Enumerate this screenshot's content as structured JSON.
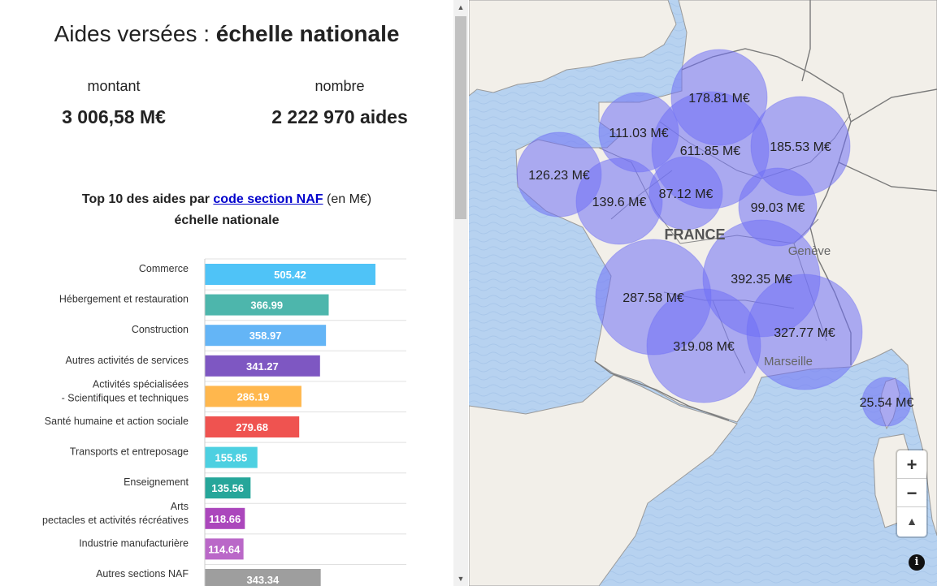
{
  "header": {
    "title_normal": "Aides versées : ",
    "title_bold": "échelle nationale"
  },
  "kpis": {
    "montant_label": "montant",
    "montant_value": "3 006,58 M€",
    "nombre_label": "nombre",
    "nombre_value": "2 222 970 aides"
  },
  "chart_header": {
    "prefix": "Top 10 des aides par ",
    "link": "code section NAF",
    "suffix": " (en M€)",
    "subtitle": "échelle nationale"
  },
  "chart_data": {
    "type": "bar",
    "orientation": "horizontal",
    "title": "Top 10 des aides par code section NAF (en M€)",
    "subtitle": "échelle nationale",
    "xlim": [
      0,
      580
    ],
    "categories": [
      [
        "Commerce"
      ],
      [
        "Hébergement et restauration"
      ],
      [
        "Construction"
      ],
      [
        "Autres activités de services"
      ],
      [
        "Activités spécialisées",
        "- Scientifiques et techniques"
      ],
      [
        "Santé humaine et action sociale"
      ],
      [
        "Transports et entreposage"
      ],
      [
        "Enseignement"
      ],
      [
        "Arts",
        "pectacles et activités récréatives"
      ],
      [
        "Industrie manufacturière"
      ],
      [
        "Autres sections NAF"
      ]
    ],
    "values": [
      505.42,
      366.99,
      358.97,
      341.27,
      286.19,
      279.68,
      155.85,
      135.56,
      118.66,
      114.64,
      343.34
    ],
    "value_labels": [
      "505.42",
      "366.99",
      "358.97",
      "341.27",
      "286.19",
      "279.68",
      "155.85",
      "135.56",
      "118.66",
      "114.64",
      "343.34"
    ],
    "colors": [
      "#4fc3f7",
      "#4db6ac",
      "#64b5f6",
      "#7e57c2",
      "#ffb74d",
      "#ef5350",
      "#4dd0e1",
      "#26a69a",
      "#ab47bc",
      "#ba68c8",
      "#9e9e9e"
    ]
  },
  "map": {
    "country_label": "FRANCE",
    "city_labels": [
      "Genève",
      "Marseille"
    ],
    "bubble_color": "#6f6ff5",
    "regions": [
      {
        "label": "178.81 M€",
        "value": 178.81
      },
      {
        "label": "111.03 M€",
        "value": 111.03
      },
      {
        "label": "611.85 M€",
        "value": 611.85
      },
      {
        "label": "185.53 M€",
        "value": 185.53
      },
      {
        "label": "126.23 M€",
        "value": 126.23
      },
      {
        "label": "139.6 M€",
        "value": 139.6
      },
      {
        "label": "87.12 M€",
        "value": 87.12
      },
      {
        "label": "99.03 M€",
        "value": 99.03
      },
      {
        "label": "392.35 M€",
        "value": 392.35
      },
      {
        "label": "287.58 M€",
        "value": 287.58
      },
      {
        "label": "327.77 M€",
        "value": 327.77
      },
      {
        "label": "319.08 M€",
        "value": 319.08
      },
      {
        "label": "25.54 M€",
        "value": 25.54
      }
    ],
    "controls": {
      "zoom_in": "+",
      "zoom_out": "−",
      "compass": "▲",
      "info": "i"
    }
  },
  "scrollbar": {
    "up_arrow": "▲",
    "down_arrow": "▼"
  }
}
